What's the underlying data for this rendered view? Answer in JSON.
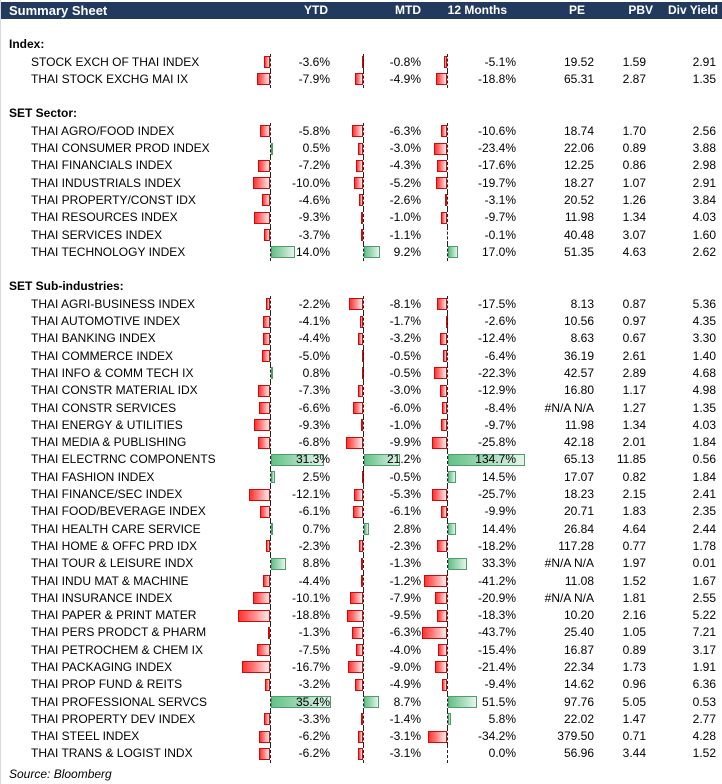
{
  "header": {
    "title": "Summary Sheet",
    "columns": [
      "YTD",
      "MTD",
      "12 Months",
      "PE",
      "PBV",
      "Div Yield"
    ]
  },
  "colors": {
    "header_bg": "#223a5e",
    "header_text": "#ffffff",
    "negative_bar_border": "#cf0a0a",
    "negative_bar_fill_start": "#ff3333",
    "negative_bar_fill_end": "#ffeded",
    "positive_bar_border": "#4e9d6b",
    "positive_bar_fill_start": "#62c286",
    "positive_bar_fill_end": "#e6f4eb"
  },
  "sections": [
    {
      "label": "Index:",
      "rows": [
        {
          "name": "STOCK EXCH OF THAI INDEX",
          "ytd": -3.6,
          "mtd": -0.8,
          "m12": -5.1,
          "pe": "19.52",
          "pbv": "1.59",
          "div_yield": "2.91"
        },
        {
          "name": "THAI STOCK EXCHG MAI IX",
          "ytd": -7.9,
          "mtd": -4.9,
          "m12": -18.8,
          "pe": "65.31",
          "pbv": "2.87",
          "div_yield": "1.35"
        }
      ]
    },
    {
      "label": "SET Sector:",
      "rows": [
        {
          "name": "THAI AGRO/FOOD INDEX",
          "ytd": -5.8,
          "mtd": -6.3,
          "m12": -10.6,
          "pe": "18.74",
          "pbv": "1.70",
          "div_yield": "2.56"
        },
        {
          "name": "THAI CONSUMER PROD INDEX",
          "ytd": 0.5,
          "mtd": -3.0,
          "m12": -23.4,
          "pe": "22.06",
          "pbv": "0.89",
          "div_yield": "3.88"
        },
        {
          "name": "THAI FINANCIALS INDEX",
          "ytd": -7.2,
          "mtd": -4.3,
          "m12": -17.6,
          "pe": "12.25",
          "pbv": "0.86",
          "div_yield": "2.98"
        },
        {
          "name": "THAI INDUSTRIALS INDEX",
          "ytd": -10.0,
          "mtd": -5.2,
          "m12": -19.7,
          "pe": "18.27",
          "pbv": "1.07",
          "div_yield": "2.91"
        },
        {
          "name": "THAI PROPERTY/CONST IDX",
          "ytd": -4.6,
          "mtd": -2.6,
          "m12": -3.1,
          "pe": "20.52",
          "pbv": "1.26",
          "div_yield": "3.84"
        },
        {
          "name": "THAI RESOURCES INDEX",
          "ytd": -9.3,
          "mtd": -1.0,
          "m12": -9.7,
          "pe": "11.98",
          "pbv": "1.34",
          "div_yield": "4.03"
        },
        {
          "name": "THAI SERVICES INDEX",
          "ytd": -3.7,
          "mtd": -1.1,
          "m12": -0.1,
          "pe": "40.48",
          "pbv": "3.07",
          "div_yield": "1.60"
        },
        {
          "name": "THAI TECHNOLOGY INDEX",
          "ytd": 14.0,
          "mtd": 9.2,
          "m12": 17.0,
          "pe": "51.35",
          "pbv": "4.63",
          "div_yield": "2.62"
        }
      ]
    },
    {
      "label": "SET Sub-industries:",
      "rows": [
        {
          "name": "THAI AGRI-BUSINESS INDEX",
          "ytd": -2.2,
          "mtd": -8.1,
          "m12": -17.5,
          "pe": "8.13",
          "pbv": "0.87",
          "div_yield": "5.36"
        },
        {
          "name": "THAI AUTOMOTIVE INDEX",
          "ytd": -4.1,
          "mtd": -1.7,
          "m12": -2.6,
          "pe": "10.56",
          "pbv": "0.97",
          "div_yield": "4.35"
        },
        {
          "name": "THAI BANKING INDEX",
          "ytd": -4.4,
          "mtd": -3.2,
          "m12": -12.4,
          "pe": "8.63",
          "pbv": "0.67",
          "div_yield": "3.30"
        },
        {
          "name": "THAI COMMERCE INDEX",
          "ytd": -5.0,
          "mtd": -0.5,
          "m12": -6.4,
          "pe": "36.19",
          "pbv": "2.61",
          "div_yield": "1.40"
        },
        {
          "name": "THAI INFO & COMM TECH IX",
          "ytd": 0.8,
          "mtd": -0.5,
          "m12": -22.3,
          "pe": "42.57",
          "pbv": "2.89",
          "div_yield": "4.68"
        },
        {
          "name": "THAI CONSTR MATERIAL IDX",
          "ytd": -7.3,
          "mtd": -3.0,
          "m12": -12.9,
          "pe": "16.80",
          "pbv": "1.17",
          "div_yield": "4.98"
        },
        {
          "name": "THAI CONSTR SERVICES",
          "ytd": -6.6,
          "mtd": -6.0,
          "m12": -8.4,
          "pe": "#N/A N/A",
          "pbv": "1.27",
          "div_yield": "1.35"
        },
        {
          "name": "THAI ENERGY & UTILITIES",
          "ytd": -9.3,
          "mtd": -1.0,
          "m12": -9.7,
          "pe": "11.98",
          "pbv": "1.34",
          "div_yield": "4.03"
        },
        {
          "name": "THAI MEDIA & PUBLISHING",
          "ytd": -6.8,
          "mtd": -9.9,
          "m12": -25.8,
          "pe": "42.18",
          "pbv": "2.01",
          "div_yield": "1.84"
        },
        {
          "name": "THAI ELECTRNC COMPONENTS",
          "ytd": 31.3,
          "mtd": 21.2,
          "m12": 134.7,
          "pe": "65.13",
          "pbv": "11.85",
          "div_yield": "0.56"
        },
        {
          "name": "THAI FASHION INDEX",
          "ytd": 2.5,
          "mtd": -0.5,
          "m12": 14.5,
          "pe": "17.07",
          "pbv": "0.82",
          "div_yield": "1.84"
        },
        {
          "name": "THAI FINANCE/SEC INDEX",
          "ytd": -12.1,
          "mtd": -5.3,
          "m12": -25.7,
          "pe": "18.23",
          "pbv": "2.15",
          "div_yield": "2.41"
        },
        {
          "name": "THAI FOOD/BEVERAGE INDEX",
          "ytd": -6.1,
          "mtd": -6.1,
          "m12": -9.9,
          "pe": "20.71",
          "pbv": "1.83",
          "div_yield": "2.35"
        },
        {
          "name": "THAI HEALTH CARE SERVICE",
          "ytd": 0.7,
          "mtd": 2.8,
          "m12": 14.4,
          "pe": "26.84",
          "pbv": "4.64",
          "div_yield": "2.44"
        },
        {
          "name": "THAI HOME & OFFC PRD IDX",
          "ytd": -2.3,
          "mtd": -2.3,
          "m12": -18.2,
          "pe": "117.28",
          "pbv": "0.77",
          "div_yield": "1.78"
        },
        {
          "name": "THAI TOUR & LEISURE INDX",
          "ytd": 8.8,
          "mtd": -1.3,
          "m12": 33.3,
          "pe": "#N/A N/A",
          "pbv": "1.97",
          "div_yield": "0.01"
        },
        {
          "name": "THAI INDU MAT & MACHINE",
          "ytd": -4.4,
          "mtd": -1.2,
          "m12": -41.2,
          "pe": "11.08",
          "pbv": "1.52",
          "div_yield": "1.67"
        },
        {
          "name": "THAI INSURANCE INDEX",
          "ytd": -10.1,
          "mtd": -7.9,
          "m12": -20.9,
          "pe": "#N/A N/A",
          "pbv": "1.81",
          "div_yield": "2.55"
        },
        {
          "name": "THAI PAPER & PRINT MATER",
          "ytd": -18.8,
          "mtd": -9.5,
          "m12": -18.3,
          "pe": "10.20",
          "pbv": "2.16",
          "div_yield": "5.22"
        },
        {
          "name": "THAI PERS PRODCT & PHARM",
          "ytd": -1.3,
          "mtd": -6.3,
          "m12": -43.7,
          "pe": "25.40",
          "pbv": "1.05",
          "div_yield": "7.21"
        },
        {
          "name": "THAI PETROCHEM & CHEM IX",
          "ytd": -7.5,
          "mtd": -4.0,
          "m12": -15.4,
          "pe": "16.87",
          "pbv": "0.89",
          "div_yield": "3.17"
        },
        {
          "name": "THAI PACKAGING INDEX",
          "ytd": -16.7,
          "mtd": -9.0,
          "m12": -21.4,
          "pe": "22.34",
          "pbv": "1.73",
          "div_yield": "1.91"
        },
        {
          "name": "THAI PROP FUND & REITS",
          "ytd": -3.2,
          "mtd": -4.9,
          "m12": -9.4,
          "pe": "14.62",
          "pbv": "0.96",
          "div_yield": "6.36"
        },
        {
          "name": "THAI PROFESSIONAL SERVCS",
          "ytd": 35.4,
          "mtd": 8.7,
          "m12": 51.5,
          "pe": "97.76",
          "pbv": "5.05",
          "div_yield": "0.53"
        },
        {
          "name": "THAI PROPERTY DEV INDEX",
          "ytd": -3.3,
          "mtd": -1.4,
          "m12": 5.8,
          "pe": "22.02",
          "pbv": "1.47",
          "div_yield": "2.77"
        },
        {
          "name": "THAI STEEL INDEX",
          "ytd": -6.2,
          "mtd": -3.1,
          "m12": -34.2,
          "pe": "379.50",
          "pbv": "0.71",
          "div_yield": "4.28"
        },
        {
          "name": "THAI TRANS & LOGIST INDX",
          "ytd": -6.2,
          "mtd": -3.1,
          "m12": 0.0,
          "pe": "56.96",
          "pbv": "3.44",
          "div_yield": "1.52"
        }
      ]
    }
  ],
  "footer": {
    "source": "Source: Bloomberg"
  }
}
